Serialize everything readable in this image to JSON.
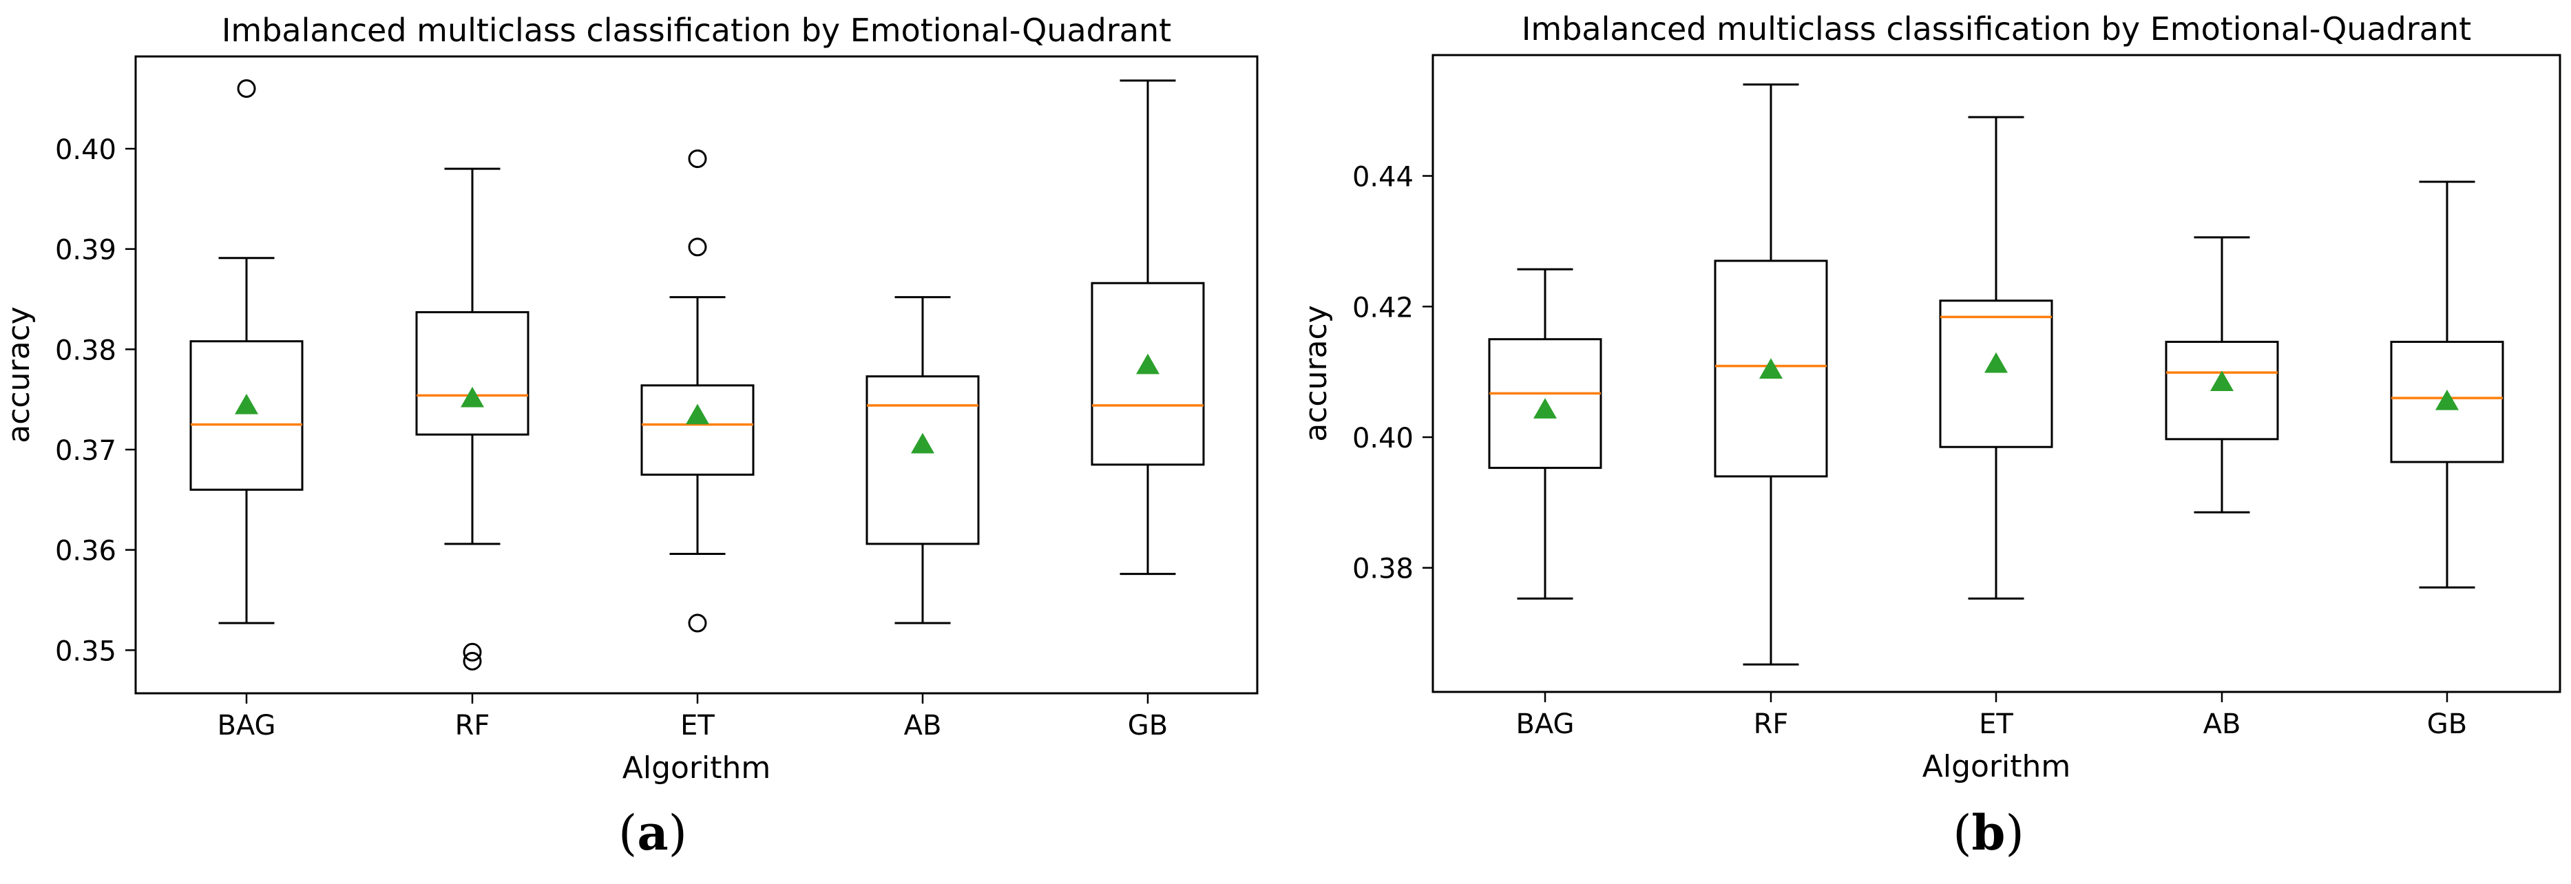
{
  "chart_data": [
    {
      "type": "boxplot",
      "panel_label": "a",
      "title": "Imbalanced multiclass classification by Emotional-Quadrant",
      "xlabel": "Algorithm",
      "ylabel": "accuracy",
      "ylim": [
        0.3457,
        0.4092
      ],
      "yticks": [
        0.35,
        0.36,
        0.37,
        0.38,
        0.39,
        0.4
      ],
      "ytick_labels": [
        "0.35",
        "0.36",
        "0.37",
        "0.38",
        "0.39",
        "0.40"
      ],
      "grid": false,
      "categories": [
        "BAG",
        "RF",
        "ET",
        "AB",
        "GB"
      ],
      "boxes": [
        {
          "label": "BAG",
          "whisker_low": 0.3527,
          "q1": 0.366,
          "median": 0.3725,
          "q3": 0.3808,
          "whisker_high": 0.3891,
          "mean": 0.3744,
          "outliers": [
            0.406
          ]
        },
        {
          "label": "RF",
          "whisker_low": 0.3606,
          "q1": 0.3715,
          "median": 0.3754,
          "q3": 0.3837,
          "whisker_high": 0.398,
          "mean": 0.3751,
          "outliers": [
            0.3498,
            0.3489
          ]
        },
        {
          "label": "ET",
          "whisker_low": 0.3596,
          "q1": 0.3675,
          "median": 0.3725,
          "q3": 0.3764,
          "whisker_high": 0.3852,
          "mean": 0.3734,
          "outliers": [
            0.399,
            0.3902,
            0.3527
          ]
        },
        {
          "label": "AB",
          "whisker_low": 0.3527,
          "q1": 0.3606,
          "median": 0.3744,
          "q3": 0.3773,
          "whisker_high": 0.3852,
          "mean": 0.3705,
          "outliers": []
        },
        {
          "label": "GB",
          "whisker_low": 0.3576,
          "q1": 0.3685,
          "median": 0.3744,
          "q3": 0.3866,
          "whisker_high": 0.4068,
          "mean": 0.3784,
          "outliers": []
        }
      ],
      "colors": {
        "median": "#ff7f0e",
        "mean_marker": "#2ca02c",
        "box": "#000000"
      }
    },
    {
      "type": "boxplot",
      "panel_label": "b",
      "title": "Imbalanced multiclass classification by Emotional-Quadrant",
      "xlabel": "Algorithm",
      "ylabel": "accuracy",
      "ylim": [
        0.361,
        0.4585
      ],
      "yticks": [
        0.38,
        0.4,
        0.42,
        0.44
      ],
      "ytick_labels": [
        "0.38",
        "0.40",
        "0.42",
        "0.44"
      ],
      "grid": false,
      "categories": [
        "BAG",
        "RF",
        "ET",
        "AB",
        "GB"
      ],
      "boxes": [
        {
          "label": "BAG",
          "whisker_low": 0.3753,
          "q1": 0.3953,
          "median": 0.4067,
          "q3": 0.415,
          "whisker_high": 0.4257,
          "mean": 0.4042,
          "outliers": []
        },
        {
          "label": "RF",
          "whisker_low": 0.3652,
          "q1": 0.394,
          "median": 0.4109,
          "q3": 0.427,
          "whisker_high": 0.454,
          "mean": 0.4103,
          "outliers": []
        },
        {
          "label": "ET",
          "whisker_low": 0.3753,
          "q1": 0.3985,
          "median": 0.4184,
          "q3": 0.4209,
          "whisker_high": 0.449,
          "mean": 0.4112,
          "outliers": []
        },
        {
          "label": "AB",
          "whisker_low": 0.3885,
          "q1": 0.3997,
          "median": 0.4099,
          "q3": 0.4146,
          "whisker_high": 0.4306,
          "mean": 0.4084,
          "outliers": []
        },
        {
          "label": "GB",
          "whisker_low": 0.377,
          "q1": 0.3962,
          "median": 0.406,
          "q3": 0.4146,
          "whisker_high": 0.4391,
          "mean": 0.4055,
          "outliers": []
        }
      ],
      "colors": {
        "median": "#ff7f0e",
        "mean_marker": "#2ca02c",
        "box": "#000000"
      }
    }
  ]
}
